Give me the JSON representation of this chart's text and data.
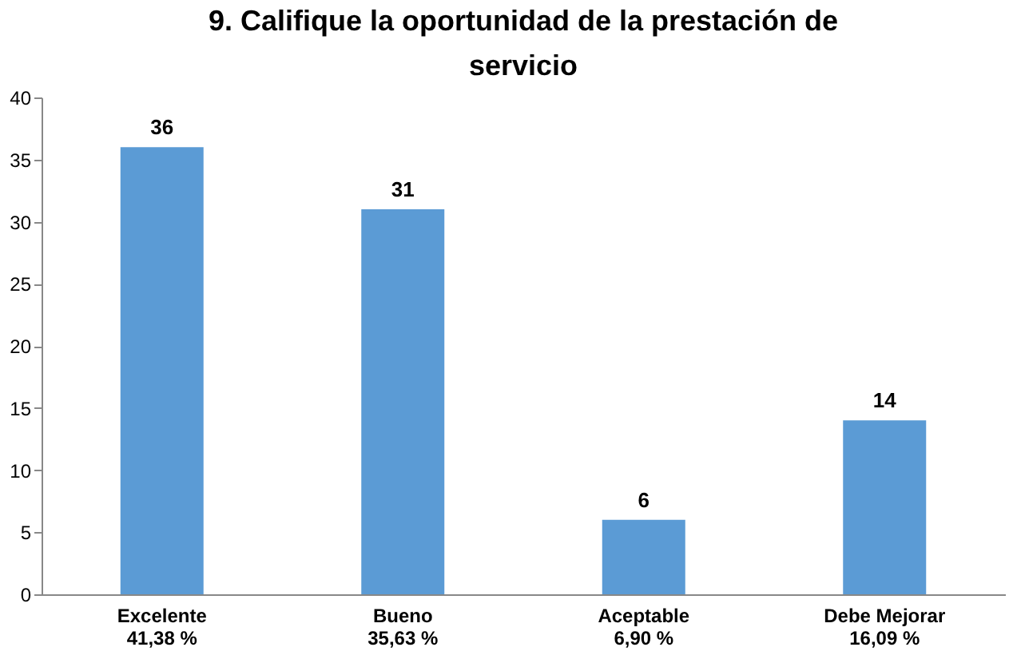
{
  "chart_data": {
    "type": "bar",
    "title": "9. Califique la oportunidad de la prestación de servicio",
    "categories": [
      "Excelente\n41,38  %",
      "Bueno\n35,63 %",
      "Aceptable\n6,90 %",
      "Debe Mejorar\n16,09 %"
    ],
    "values": [
      36,
      31,
      6,
      14
    ],
    "color": "#5b9bd5",
    "ylim": [
      0,
      40
    ],
    "yticks": [
      0,
      5,
      10,
      15,
      20,
      25,
      30,
      35,
      40
    ],
    "grid": false,
    "data_labels": true
  }
}
